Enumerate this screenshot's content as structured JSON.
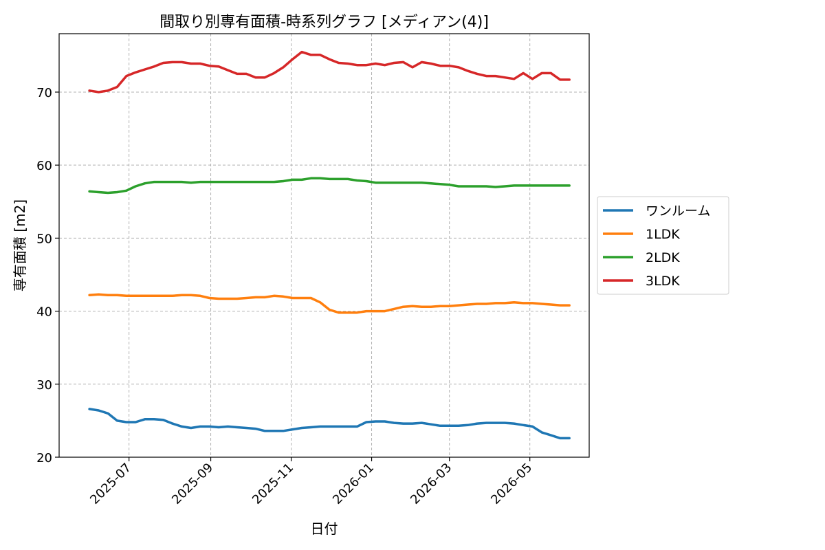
{
  "chart_data": {
    "type": "line",
    "title": "間取り別専有面積-時系列グラフ [メディアン(4)]",
    "xlabel": "日付",
    "ylabel": "専有面積 [m2]",
    "xlim": [
      "2025-05-09",
      "2026-06-15"
    ],
    "ylim": [
      20,
      78
    ],
    "x_ticks": [
      "2025-07",
      "2025-09",
      "2025-11",
      "2026-01",
      "2026-03",
      "2026-05"
    ],
    "y_ticks": [
      20,
      30,
      40,
      50,
      60,
      70
    ],
    "grid": true,
    "legend": "right",
    "x": [
      "2025-06-01",
      "2025-06-08",
      "2025-06-15",
      "2025-06-22",
      "2025-06-29",
      "2025-07-06",
      "2025-07-13",
      "2025-07-20",
      "2025-07-27",
      "2025-08-03",
      "2025-08-10",
      "2025-08-17",
      "2025-08-24",
      "2025-08-31",
      "2025-09-07",
      "2025-09-14",
      "2025-09-21",
      "2025-09-28",
      "2025-10-05",
      "2025-10-12",
      "2025-10-19",
      "2025-10-26",
      "2025-11-02",
      "2025-11-09",
      "2025-11-16",
      "2025-11-23",
      "2025-11-30",
      "2025-12-07",
      "2025-12-14",
      "2025-12-21",
      "2025-12-28",
      "2026-01-04",
      "2026-01-11",
      "2026-01-18",
      "2026-01-25",
      "2026-02-01",
      "2026-02-08",
      "2026-02-15",
      "2026-02-22",
      "2026-03-01",
      "2026-03-08",
      "2026-03-15",
      "2026-03-22",
      "2026-03-29",
      "2026-04-05",
      "2026-04-12",
      "2026-04-19",
      "2026-04-26",
      "2026-05-03",
      "2026-05-10",
      "2026-05-17",
      "2026-05-24",
      "2026-05-31"
    ],
    "series": [
      {
        "name": "ワンルーム",
        "color": "#1f77b4",
        "values": [
          26.6,
          26.4,
          26.0,
          25.0,
          24.8,
          24.8,
          25.2,
          25.2,
          25.1,
          24.6,
          24.2,
          24.0,
          24.2,
          24.2,
          24.1,
          24.2,
          24.1,
          24.0,
          23.9,
          23.6,
          23.6,
          23.6,
          23.8,
          24.0,
          24.1,
          24.2,
          24.2,
          24.2,
          24.2,
          24.2,
          24.8,
          24.9,
          24.9,
          24.7,
          24.6,
          24.6,
          24.7,
          24.5,
          24.3,
          24.3,
          24.3,
          24.4,
          24.6,
          24.7,
          24.7,
          24.7,
          24.6,
          24.4,
          24.2,
          23.4,
          23.0,
          22.6,
          22.6
        ]
      },
      {
        "name": "1LDK",
        "color": "#ff7f0e",
        "values": [
          42.2,
          42.3,
          42.2,
          42.2,
          42.1,
          42.1,
          42.1,
          42.1,
          42.1,
          42.1,
          42.2,
          42.2,
          42.1,
          41.8,
          41.7,
          41.7,
          41.7,
          41.8,
          41.9,
          41.9,
          42.1,
          42.0,
          41.8,
          41.8,
          41.8,
          41.2,
          40.2,
          39.8,
          39.8,
          39.8,
          40.0,
          40.0,
          40.0,
          40.3,
          40.6,
          40.7,
          40.6,
          40.6,
          40.7,
          40.7,
          40.8,
          40.9,
          41.0,
          41.0,
          41.1,
          41.1,
          41.2,
          41.1,
          41.1,
          41.0,
          40.9,
          40.8,
          40.8
        ]
      },
      {
        "name": "2LDK",
        "color": "#2ca02c",
        "values": [
          56.4,
          56.3,
          56.2,
          56.3,
          56.5,
          57.1,
          57.5,
          57.7,
          57.7,
          57.7,
          57.7,
          57.6,
          57.7,
          57.7,
          57.7,
          57.7,
          57.7,
          57.7,
          57.7,
          57.7,
          57.7,
          57.8,
          58.0,
          58.0,
          58.2,
          58.2,
          58.1,
          58.1,
          58.1,
          57.9,
          57.8,
          57.6,
          57.6,
          57.6,
          57.6,
          57.6,
          57.6,
          57.5,
          57.4,
          57.3,
          57.1,
          57.1,
          57.1,
          57.1,
          57.0,
          57.1,
          57.2,
          57.2,
          57.2,
          57.2,
          57.2,
          57.2,
          57.2
        ]
      },
      {
        "name": "3LDK",
        "color": "#d62728",
        "values": [
          70.2,
          70.0,
          70.2,
          70.7,
          72.2,
          72.7,
          73.1,
          73.5,
          74.0,
          74.1,
          74.1,
          73.9,
          73.9,
          73.6,
          73.5,
          73.0,
          72.5,
          72.5,
          72.0,
          72.0,
          72.6,
          73.4,
          74.5,
          75.5,
          75.1,
          75.1,
          74.5,
          74.0,
          73.9,
          73.7,
          73.7,
          73.9,
          73.7,
          74.0,
          74.1,
          73.4,
          74.1,
          73.9,
          73.6,
          73.6,
          73.4,
          72.9,
          72.5,
          72.2,
          72.2,
          72.0,
          71.8,
          72.6,
          71.8,
          72.6,
          72.6,
          71.7,
          71.7
        ]
      }
    ]
  }
}
